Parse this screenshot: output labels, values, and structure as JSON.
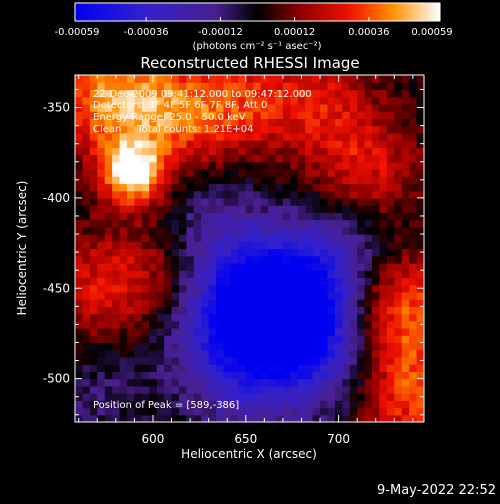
{
  "chart_data": {
    "type": "heatmap",
    "title": "Reconstructed RHESSI Image",
    "xlabel": "Heliocentric X (arcsec)",
    "ylabel": "Heliocentric Y (arcsec)",
    "xlim": [
      558,
      746
    ],
    "ylim": [
      -524,
      -332
    ],
    "x_ticks": [
      600,
      650,
      700
    ],
    "y_ticks": [
      -350,
      -400,
      -450,
      -500
    ],
    "colorbar": {
      "range": [
        -0.00059,
        0.00059
      ],
      "ticks": [
        -0.00059,
        -0.00036,
        -0.00012,
        0.00012,
        0.00036,
        0.00059
      ],
      "tick_labels": [
        "-0.00059",
        "-0.00036",
        "-0.00012",
        "0.00012",
        "0.00036",
        "0.00059"
      ],
      "units": "(photons cm⁻² s⁻¹ asec⁻²)",
      "colormap": "blue-purple-red-yellow-white"
    },
    "annotations": [
      "22-Dec-2009 09:41:12.000 to 09:47:12.000",
      "Detectors: 3F 4F 5F 6F 7F 8F, Att 0",
      "Energy Range: 25.0 - 50.0 keV",
      "Clean     Total counts: 1.21E+04"
    ],
    "peak_label": "Position of Peak = [589,-386]",
    "peak": [
      589,
      -386
    ],
    "sources": [
      {
        "x": 589,
        "y": -386,
        "value": 0.00059
      },
      {
        "x": 576,
        "y": -345,
        "value": 0.0004
      },
      {
        "x": 612,
        "y": -352,
        "value": 0.0003
      },
      {
        "x": 735,
        "y": -460,
        "value": 0.00038
      },
      {
        "x": 738,
        "y": -508,
        "value": 0.00034
      },
      {
        "x": 715,
        "y": -385,
        "value": 0.00026
      },
      {
        "x": 648,
        "y": -348,
        "value": 0.00024
      },
      {
        "x": 690,
        "y": -344,
        "value": 0.00022
      },
      {
        "x": 572,
        "y": -450,
        "value": 0.00026
      },
      {
        "x": 610,
        "y": -430,
        "value": 0.00018
      },
      {
        "x": 570,
        "y": -505,
        "value": -0.0001
      },
      {
        "x": 662,
        "y": -455,
        "value": -0.00042
      },
      {
        "x": 676,
        "y": -462,
        "value": -0.00045
      },
      {
        "x": 642,
        "y": -470,
        "value": -0.00034
      },
      {
        "x": 692,
        "y": -490,
        "value": -0.00026
      },
      {
        "x": 630,
        "y": -420,
        "value": -0.00026
      },
      {
        "x": 700,
        "y": -430,
        "value": -0.00024
      },
      {
        "x": 650,
        "y": -500,
        "value": -0.00022
      }
    ]
  },
  "footer": {
    "date": "9-May-2022 22:52"
  }
}
